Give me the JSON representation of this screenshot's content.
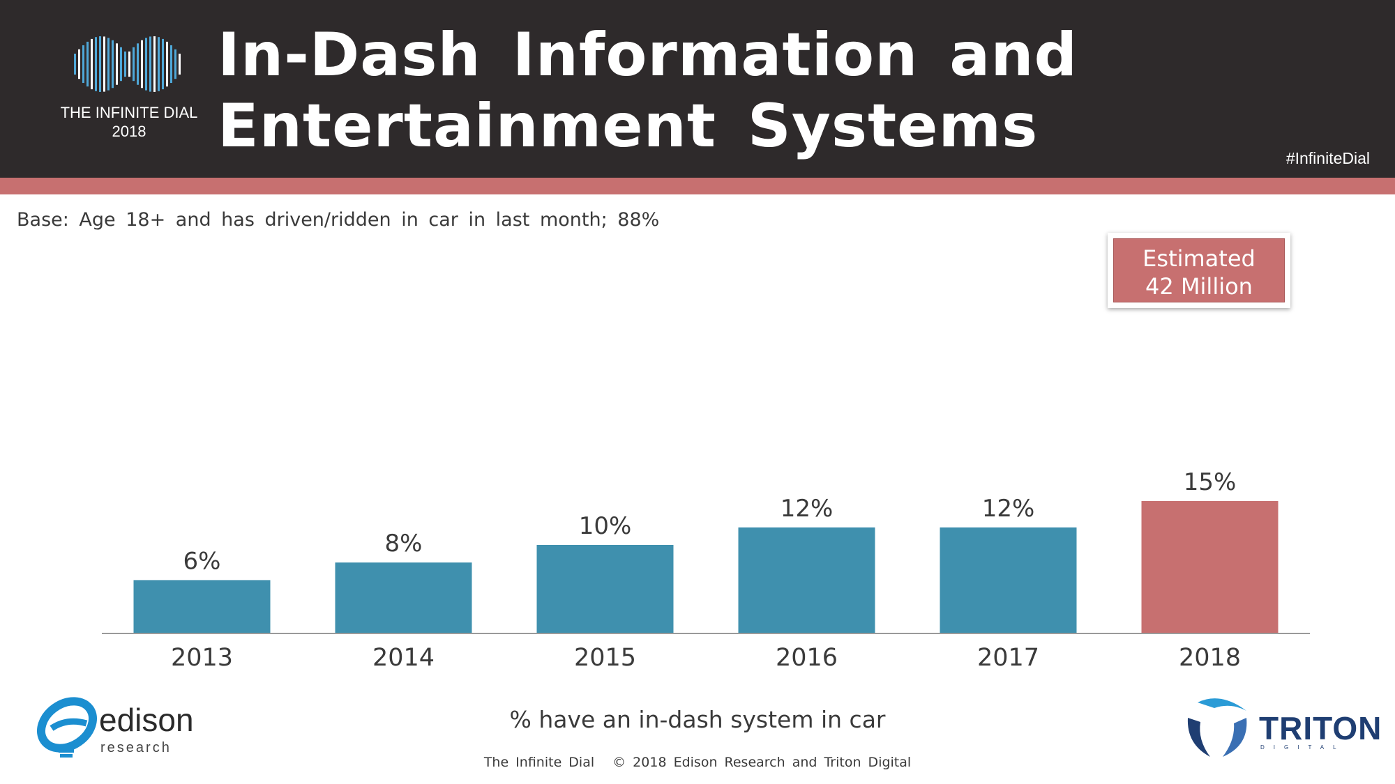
{
  "header": {
    "logo_line1": "THE INFINITE DIAL",
    "logo_line2": "2018",
    "title_line1": "In-Dash Information and",
    "title_line2": "Entertainment Systems",
    "hashtag": "#InfiniteDial"
  },
  "base_note": "Base: Age 18+ and has driven/ridden in car in last month; 88%",
  "estimate": {
    "line1": "Estimated",
    "line2": "42 Million"
  },
  "chart_data": {
    "type": "bar",
    "categories": [
      "2013",
      "2014",
      "2015",
      "2016",
      "2017",
      "2018"
    ],
    "values": [
      6,
      8,
      10,
      12,
      12,
      15
    ],
    "labels": [
      "6%",
      "8%",
      "10%",
      "12%",
      "12%",
      "15%"
    ],
    "unit": "%",
    "ylim": [
      0,
      15
    ],
    "xlabel": "% have an in-dash system in car",
    "ylabel": "",
    "bar_colors": [
      "#3f90ae",
      "#3f90ae",
      "#3f90ae",
      "#3f90ae",
      "#3f90ae",
      "#c77070"
    ]
  },
  "footer": {
    "left": "The Infinite Dial",
    "right": "© 2018 Edison Research and Triton Digital"
  },
  "logos": {
    "edison_name": "edison",
    "edison_sub": "research",
    "triton_name": "TRITON",
    "triton_sub": "DIGITAL"
  },
  "colors": {
    "header_bg": "#2e2a2b",
    "accent": "#c77070",
    "bar_blue": "#3f90ae"
  }
}
